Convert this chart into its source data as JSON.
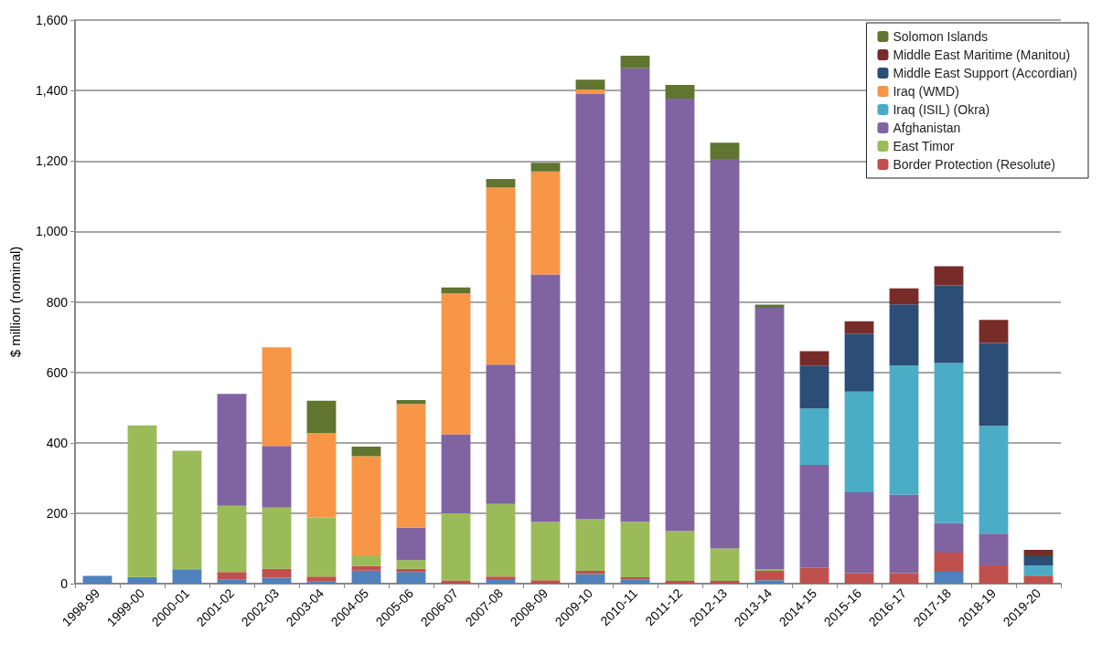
{
  "chart_data": {
    "type": "bar",
    "stacked": true,
    "ylabel": "$ million (nominal)",
    "grid": "y",
    "legend": "top right",
    "categories": [
      "1998-99",
      "1999-00",
      "2000-01",
      "2001-02",
      "2002-03",
      "2003-04",
      "2004-05",
      "2005-06",
      "2006-07",
      "2007-08",
      "2008-09",
      "2009-10",
      "2010-11",
      "2011-12",
      "2012-13",
      "2013-14",
      "2014-15",
      "2015-16",
      "2016-17",
      "2017-18",
      "2018-19",
      "2019-20"
    ],
    "ylim": [
      0,
      1600
    ],
    "yticks": [
      0,
      {
        "value": 200,
        "label": "200"
      },
      {
        "value": 400,
        "label": "400"
      },
      {
        "value": 600,
        "label": "600"
      },
      {
        "value": 800,
        "label": "800"
      },
      {
        "value": 1000,
        "label": "1,000"
      },
      {
        "value": 1200,
        "label": "1,200"
      },
      {
        "value": 1400,
        "label": "1,400"
      },
      {
        "value": 1600,
        "label": "1,600"
      }
    ],
    "series": [
      {
        "color": "#4f81bd",
        "values": [
          22,
          19,
          41,
          11,
          17,
          6,
          37,
          33,
          null,
          13,
          null,
          27,
          12,
          null,
          null,
          10,
          null,
          null,
          null,
          34,
          null,
          null
        ]
      },
      {
        "name": "Border Protection (Resolute)",
        "color": "#c0504d",
        "values": [
          null,
          null,
          null,
          22,
          25,
          14,
          13,
          9,
          9,
          7,
          10,
          9,
          6,
          8,
          8,
          26,
          45,
          30,
          30,
          54,
          52,
          23
        ]
      },
      {
        "name": "East Timor",
        "color": "#9bbb59",
        "values": [
          null,
          430,
          336,
          188,
          174,
          168,
          28,
          25,
          191,
          206,
          165,
          147,
          158,
          141,
          92,
          4,
          null,
          null,
          null,
          null,
          null,
          null
        ]
      },
      {
        "name": "Afghanistan",
        "color": "#8064a2",
        "values": [
          null,
          null,
          null,
          318,
          175,
          null,
          null,
          92,
          224,
          396,
          703,
          1207,
          1287,
          1228,
          1106,
          743,
          292,
          229,
          222,
          84,
          90,
          null
        ]
      },
      {
        "name": "Iraq (ISIL) (Okra)",
        "color": "#4bacc6",
        "values": [
          null,
          null,
          null,
          null,
          null,
          null,
          null,
          null,
          null,
          null,
          null,
          null,
          null,
          null,
          null,
          null,
          160,
          286,
          368,
          454,
          306,
          29
        ]
      },
      {
        "name": "Iraq (WMD)",
        "color": "#f79646",
        "values": [
          null,
          null,
          null,
          null,
          280,
          240,
          284,
          351,
          400,
          503,
          292,
          13,
          null,
          null,
          null,
          null,
          null,
          null,
          null,
          null,
          null,
          null
        ]
      },
      {
        "name": "Middle East Support (Accordian)",
        "color": "#2c4d75",
        "values": [
          null,
          null,
          null,
          null,
          null,
          null,
          null,
          null,
          null,
          null,
          null,
          null,
          null,
          null,
          null,
          null,
          122,
          165,
          173,
          221,
          235,
          26
        ]
      },
      {
        "name": "Middle East Maritime (Manitou)",
        "color": "#772c2a",
        "values": [
          null,
          null,
          null,
          null,
          null,
          null,
          null,
          null,
          null,
          null,
          null,
          null,
          null,
          null,
          null,
          null,
          41,
          35,
          45,
          54,
          66,
          18
        ]
      },
      {
        "name": "Solomon Islands",
        "color": "#5f7530",
        "values": [
          null,
          null,
          null,
          null,
          null,
          91,
          27,
          11,
          17,
          24,
          25,
          28,
          36,
          39,
          46,
          9,
          null,
          null,
          null,
          null,
          null,
          null
        ]
      }
    ]
  }
}
